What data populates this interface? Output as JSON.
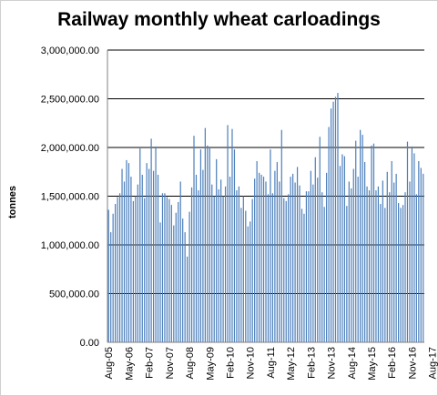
{
  "chart_data": {
    "type": "bar",
    "title": "Railway monthly wheat carloadings",
    "xlabel": "",
    "ylabel": "tonnes",
    "ylim": [
      0,
      3000000
    ],
    "yticks": [
      "0.00",
      "500,000.00",
      "1,000,000.00",
      "1,500,000.00",
      "2,000,000.00",
      "2,500,000.00",
      "3,000,000.00"
    ],
    "xtick_labels": [
      "Aug-05",
      "May-06",
      "Feb-07",
      "Nov-07",
      "Aug-08",
      "May-09",
      "Feb-10",
      "Nov-10",
      "Aug-11",
      "May-12",
      "Feb-13",
      "Nov-13",
      "Aug-14",
      "May-15",
      "Feb-16",
      "Nov-16",
      "Aug-17"
    ],
    "grid": "horizontal",
    "legend": "none",
    "color": "#4f81bd",
    "series": [
      {
        "values": [
          1360000,
          1130000,
          1320000,
          1420000,
          1490000,
          1530000,
          1780000,
          1650000,
          1870000,
          1840000,
          1700000,
          1450000,
          1500000,
          1620000,
          1990000,
          1720000,
          1480000,
          1840000,
          1780000,
          2090000,
          1760000,
          2010000,
          1720000,
          1230000,
          1530000,
          1530000,
          1490000,
          1470000,
          1410000,
          1200000,
          1330000,
          1440000,
          1650000,
          1270000,
          1130000,
          880000,
          1340000,
          1590000,
          2120000,
          1720000,
          1560000,
          1980000,
          1770000,
          2200000,
          2020000,
          2000000,
          1620000,
          1500000,
          1880000,
          1570000,
          1670000,
          1500000,
          1600000,
          2230000,
          1700000,
          2190000,
          1980000,
          1560000,
          1600000,
          1380000,
          1500000,
          1350000,
          1190000,
          1240000,
          1470000,
          1680000,
          1860000,
          1740000,
          1720000,
          1700000,
          1650000,
          1520000,
          1980000,
          1530000,
          1760000,
          1850000,
          1650000,
          2180000,
          1480000,
          1450000,
          1520000,
          1700000,
          1730000,
          1640000,
          1800000,
          1610000,
          1370000,
          1320000,
          1550000,
          1550000,
          1760000,
          1620000,
          1900000,
          1690000,
          2110000,
          1540000,
          1390000,
          1740000,
          2210000,
          2400000,
          2470000,
          2520000,
          2560000,
          1810000,
          1930000,
          1910000,
          1400000,
          1650000,
          1580000,
          1780000,
          2070000,
          1700000,
          2180000,
          2130000,
          1850000,
          1600000,
          1560000,
          2020000,
          2040000,
          1560000,
          1600000,
          1420000,
          1660000,
          1380000,
          1750000,
          1540000,
          1860000,
          1640000,
          1730000,
          1430000,
          1380000,
          1410000,
          1540000,
          2060000,
          1650000,
          2010000,
          1940000,
          1520000,
          1860000,
          1790000,
          1730000
        ]
      }
    ]
  }
}
